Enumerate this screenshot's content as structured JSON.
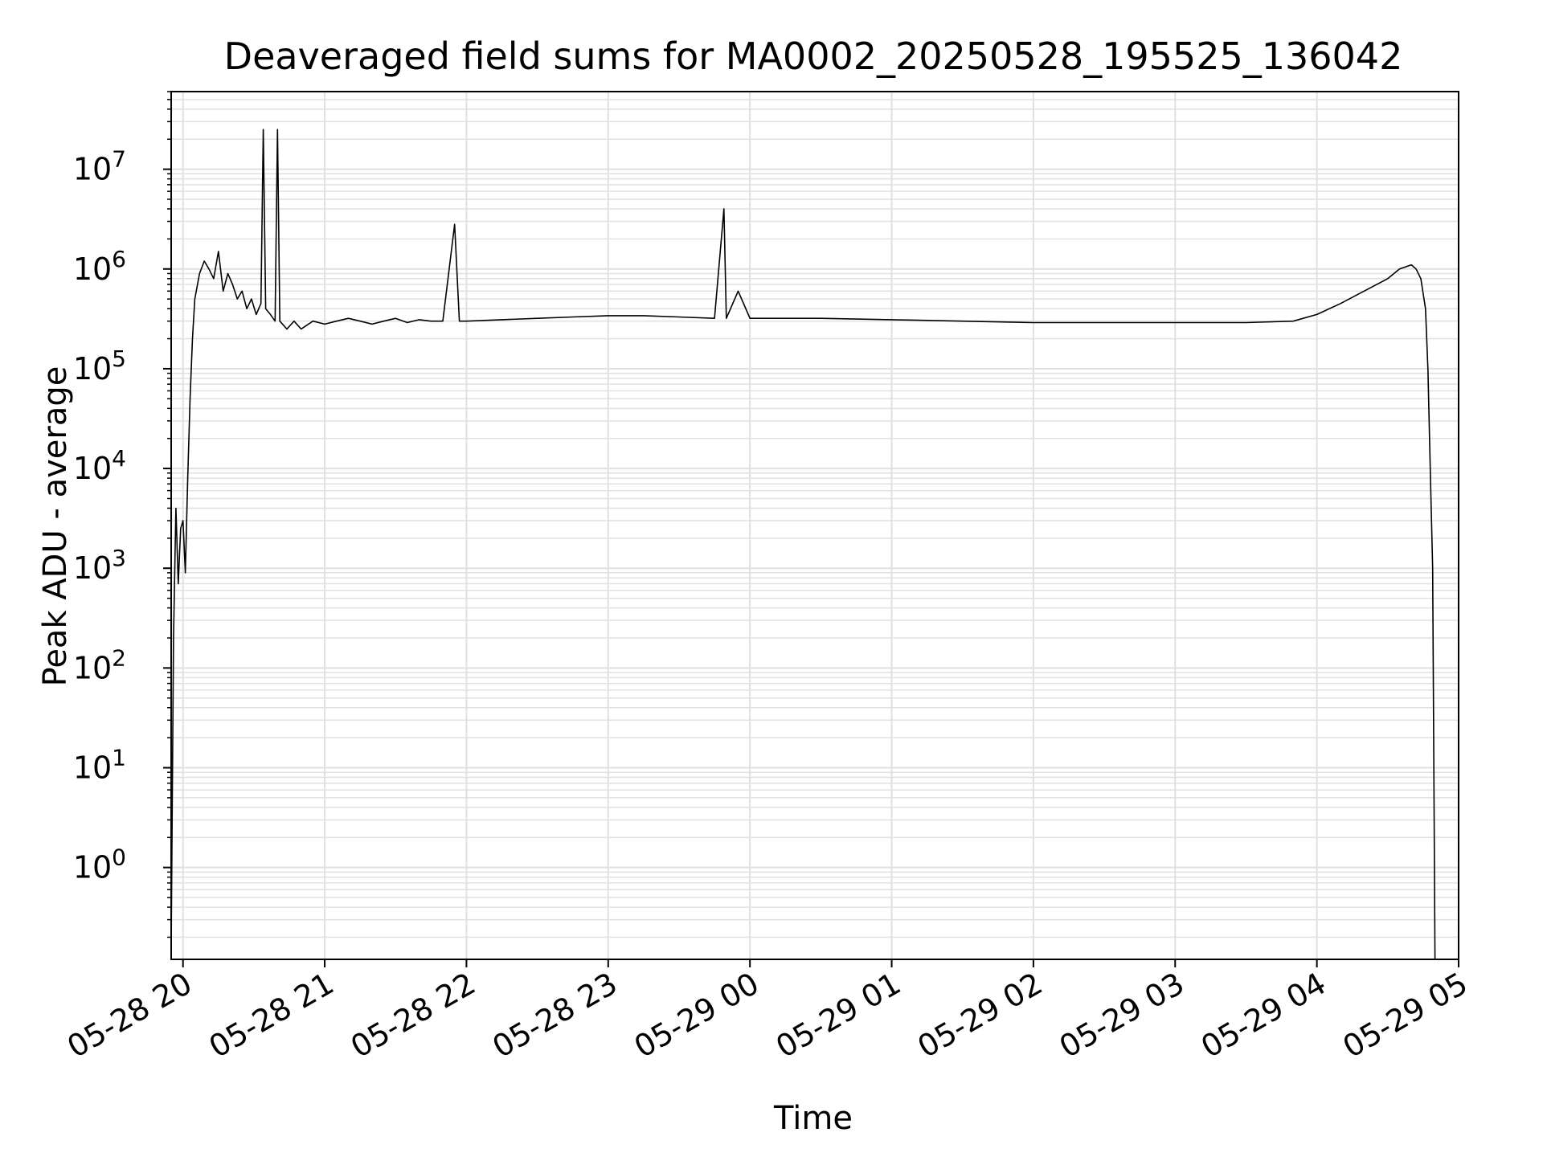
{
  "chart_data": {
    "type": "line",
    "title": "Deaveraged field sums for MA0002_20250528_195525_136042",
    "xlabel": "Time",
    "ylabel": "Peak ADU - average",
    "yscale": "log",
    "ylim": [
      0.12,
      60000000
    ],
    "xlim": [
      "2025-05-28 19:55",
      "2025-05-29 05:00"
    ],
    "grid": true,
    "line_color": "#000000",
    "grid_color": "#e0e0e0",
    "x_ticks": [
      "05-28 20",
      "05-28 21",
      "05-28 22",
      "05-28 23",
      "05-29 00",
      "05-29 01",
      "05-29 02",
      "05-29 03",
      "05-29 04",
      "05-29 05"
    ],
    "y_ticks": [
      {
        "base": "10",
        "exp": "0",
        "value": 1
      },
      {
        "base": "10",
        "exp": "1",
        "value": 10
      },
      {
        "base": "10",
        "exp": "2",
        "value": 100
      },
      {
        "base": "10",
        "exp": "3",
        "value": 1000
      },
      {
        "base": "10",
        "exp": "4",
        "value": 10000
      },
      {
        "base": "10",
        "exp": "5",
        "value": 100000
      },
      {
        "base": "10",
        "exp": "6",
        "value": 1000000
      },
      {
        "base": "10",
        "exp": "7",
        "value": 10000000
      }
    ],
    "series": [
      {
        "points": [
          [
            "2025-05-28 19:55",
            0.15
          ],
          [
            "2025-05-28 19:56",
            200
          ],
          [
            "2025-05-28 19:57",
            4000
          ],
          [
            "2025-05-28 19:58",
            700
          ],
          [
            "2025-05-28 19:59",
            2500
          ],
          [
            "2025-05-28 20:00",
            3000
          ],
          [
            "2025-05-28 20:01",
            900
          ],
          [
            "2025-05-28 20:02",
            8000
          ],
          [
            "2025-05-28 20:03",
            50000
          ],
          [
            "2025-05-28 20:04",
            200000
          ],
          [
            "2025-05-28 20:05",
            500000
          ],
          [
            "2025-05-28 20:07",
            900000
          ],
          [
            "2025-05-28 20:09",
            1200000
          ],
          [
            "2025-05-28 20:11",
            1000000
          ],
          [
            "2025-05-28 20:13",
            800000
          ],
          [
            "2025-05-28 20:15",
            1500000
          ],
          [
            "2025-05-28 20:17",
            600000
          ],
          [
            "2025-05-28 20:19",
            900000
          ],
          [
            "2025-05-28 20:21",
            700000
          ],
          [
            "2025-05-28 20:23",
            500000
          ],
          [
            "2025-05-28 20:25",
            600000
          ],
          [
            "2025-05-28 20:27",
            400000
          ],
          [
            "2025-05-28 20:29",
            500000
          ],
          [
            "2025-05-28 20:31",
            350000
          ],
          [
            "2025-05-28 20:33",
            450000
          ],
          [
            "2025-05-28 20:34",
            25000000
          ],
          [
            "2025-05-28 20:35",
            400000
          ],
          [
            "2025-05-28 20:37",
            350000
          ],
          [
            "2025-05-28 20:39",
            300000
          ],
          [
            "2025-05-28 20:40",
            25000000
          ],
          [
            "2025-05-28 20:41",
            300000
          ],
          [
            "2025-05-28 20:44",
            250000
          ],
          [
            "2025-05-28 20:47",
            300000
          ],
          [
            "2025-05-28 20:50",
            250000
          ],
          [
            "2025-05-28 20:55",
            300000
          ],
          [
            "2025-05-28 21:00",
            280000
          ],
          [
            "2025-05-28 21:05",
            300000
          ],
          [
            "2025-05-28 21:10",
            320000
          ],
          [
            "2025-05-28 21:15",
            300000
          ],
          [
            "2025-05-28 21:20",
            280000
          ],
          [
            "2025-05-28 21:25",
            300000
          ],
          [
            "2025-05-28 21:30",
            320000
          ],
          [
            "2025-05-28 21:35",
            290000
          ],
          [
            "2025-05-28 21:40",
            310000
          ],
          [
            "2025-05-28 21:45",
            300000
          ],
          [
            "2025-05-28 21:50",
            300000
          ],
          [
            "2025-05-28 21:55",
            2800000
          ],
          [
            "2025-05-28 21:57",
            300000
          ],
          [
            "2025-05-28 22:00",
            300000
          ],
          [
            "2025-05-28 22:15",
            310000
          ],
          [
            "2025-05-28 22:30",
            320000
          ],
          [
            "2025-05-28 22:45",
            330000
          ],
          [
            "2025-05-28 23:00",
            340000
          ],
          [
            "2025-05-28 23:15",
            340000
          ],
          [
            "2025-05-28 23:30",
            330000
          ],
          [
            "2025-05-28 23:45",
            320000
          ],
          [
            "2025-05-28 23:49",
            4000000
          ],
          [
            "2025-05-28 23:50",
            320000
          ],
          [
            "2025-05-28 23:55",
            600000
          ],
          [
            "2025-05-29 00:00",
            320000
          ],
          [
            "2025-05-29 00:30",
            320000
          ],
          [
            "2025-05-29 01:00",
            310000
          ],
          [
            "2025-05-29 01:30",
            300000
          ],
          [
            "2025-05-29 02:00",
            290000
          ],
          [
            "2025-05-29 02:30",
            290000
          ],
          [
            "2025-05-29 03:00",
            290000
          ],
          [
            "2025-05-29 03:30",
            290000
          ],
          [
            "2025-05-29 03:50",
            300000
          ],
          [
            "2025-05-29 04:00",
            350000
          ],
          [
            "2025-05-29 04:10",
            450000
          ],
          [
            "2025-05-29 04:20",
            600000
          ],
          [
            "2025-05-29 04:30",
            800000
          ],
          [
            "2025-05-29 04:35",
            1000000
          ],
          [
            "2025-05-29 04:40",
            1100000
          ],
          [
            "2025-05-29 04:42",
            1000000
          ],
          [
            "2025-05-29 04:44",
            800000
          ],
          [
            "2025-05-29 04:46",
            400000
          ],
          [
            "2025-05-29 04:47",
            100000
          ],
          [
            "2025-05-29 04:48",
            10000
          ],
          [
            "2025-05-29 04:49",
            1000
          ],
          [
            "2025-05-29 04:50",
            0.12
          ]
        ]
      }
    ]
  }
}
